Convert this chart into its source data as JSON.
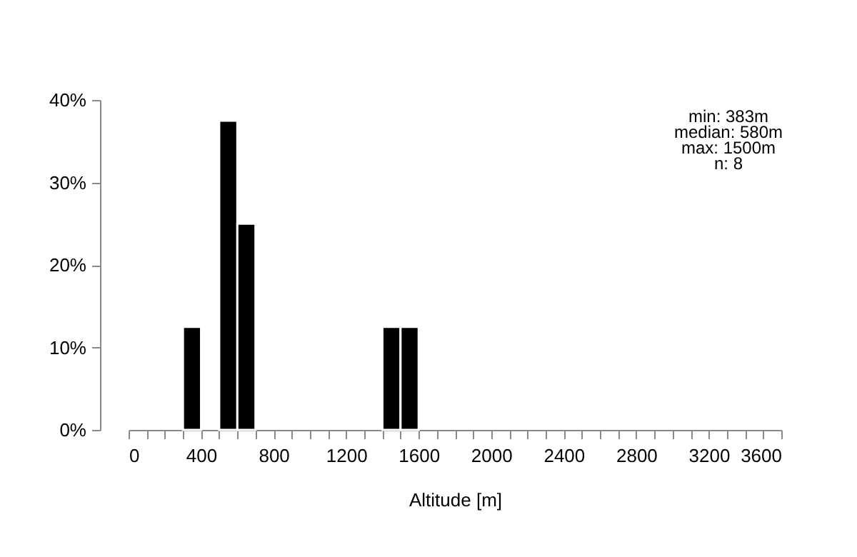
{
  "chart_data": {
    "type": "histogram",
    "xlabel": "Altitude [m]",
    "bins": [
      0,
      100,
      200,
      300,
      400,
      500,
      600,
      700,
      800,
      900,
      1000,
      1100,
      1200,
      1300,
      1400,
      1500,
      1600,
      1700,
      1800,
      1900,
      2000,
      2100,
      2200,
      2300,
      2400,
      2500,
      2600,
      2700,
      2800,
      2900,
      3000,
      3100,
      3200,
      3300,
      3400,
      3500,
      3600
    ],
    "values": [
      0,
      0,
      0,
      12.5,
      0,
      37.5,
      25,
      0,
      0,
      0,
      0,
      0,
      0,
      0,
      12.5,
      12.5,
      0,
      0,
      0,
      0,
      0,
      0,
      0,
      0,
      0,
      0,
      0,
      0,
      0,
      0,
      0,
      0,
      0,
      0,
      0,
      0
    ],
    "color": "#000000",
    "xlim": [
      0,
      3600
    ],
    "xticks": [
      0,
      {
        "value": 100,
        "label": null
      },
      {
        "value": 200,
        "label": null
      },
      {
        "value": 300,
        "label": null
      },
      400,
      {
        "value": 500,
        "label": null
      },
      {
        "value": 600,
        "label": null
      },
      {
        "value": 700,
        "label": null
      },
      800,
      {
        "value": 900,
        "label": null
      },
      {
        "value": 1000,
        "label": null
      },
      {
        "value": 1100,
        "label": null
      },
      1200,
      {
        "value": 1300,
        "label": null
      },
      {
        "value": 1400,
        "label": null
      },
      {
        "value": 1500,
        "label": null
      },
      1600,
      {
        "value": 1700,
        "label": null
      },
      {
        "value": 1800,
        "label": null
      },
      {
        "value": 1900,
        "label": null
      },
      2000,
      {
        "value": 2100,
        "label": null
      },
      {
        "value": 2200,
        "label": null
      },
      {
        "value": 2300,
        "label": null
      },
      2400,
      {
        "value": 2500,
        "label": null
      },
      {
        "value": 2600,
        "label": null
      },
      {
        "value": 2700,
        "label": null
      },
      2800,
      {
        "value": 2900,
        "label": null
      },
      {
        "value": 3000,
        "label": null
      },
      {
        "value": 3100,
        "label": null
      },
      3200,
      {
        "value": 3300,
        "label": null
      },
      {
        "value": 3400,
        "label": null
      },
      {
        "value": 3500,
        "label": null
      },
      3600
    ],
    "ylim": [
      0,
      40
    ],
    "yticks": [
      {
        "value": 0,
        "label": "0%"
      },
      {
        "value": 10,
        "label": "10%"
      },
      {
        "value": 20,
        "label": "20%"
      },
      {
        "value": 30,
        "label": "30%"
      },
      {
        "value": 40,
        "label": "40%"
      }
    ],
    "grid": false,
    "annotations": [
      "min: 383m",
      "median: 580m",
      "max: 1500m",
      "n:  8"
    ]
  }
}
